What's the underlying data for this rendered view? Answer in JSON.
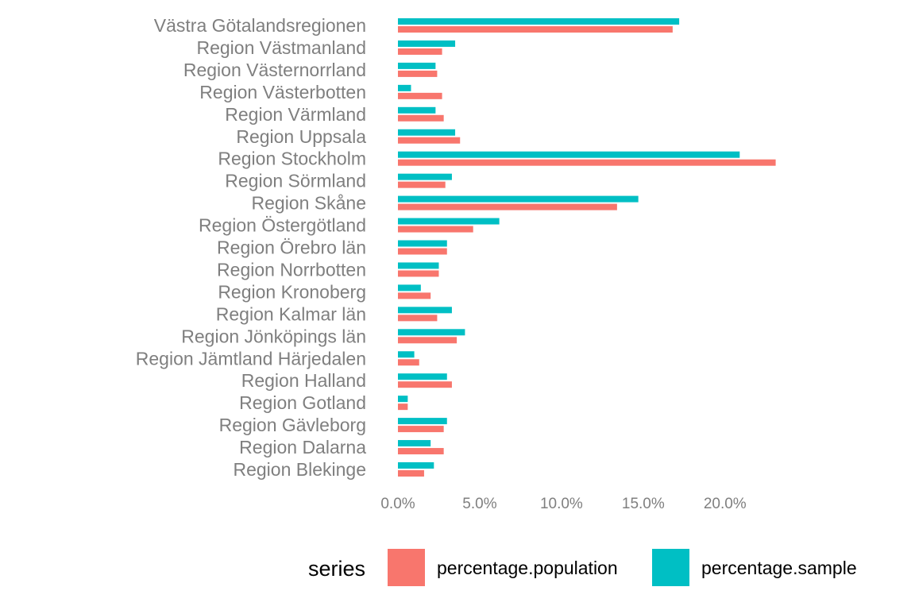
{
  "chart_data": {
    "type": "bar",
    "orientation": "horizontal",
    "categories": [
      "Västra Götalandsregionen",
      "Region Västmanland",
      "Region Västernorrland",
      "Region Västerbotten",
      "Region Värmland",
      "Region Uppsala",
      "Region Stockholm",
      "Region Sörmland",
      "Region Skåne",
      "Region Östergötland",
      "Region Örebro län",
      "Region Norrbotten",
      "Region Kronoberg",
      "Region Kalmar län",
      "Region Jönköpings län",
      "Region Jämtland Härjedalen",
      "Region Halland",
      "Region Gotland",
      "Region Gävleborg",
      "Region Dalarna",
      "Region Blekinge"
    ],
    "series": [
      {
        "name": "percentage.sample",
        "color": "#00BFC4",
        "values": [
          17.2,
          3.5,
          2.3,
          0.8,
          2.3,
          3.5,
          20.9,
          3.3,
          14.7,
          6.2,
          3.0,
          2.5,
          1.4,
          3.3,
          4.1,
          1.0,
          3.0,
          0.6,
          3.0,
          2.0,
          2.2
        ]
      },
      {
        "name": "percentage.population",
        "color": "#F8766D",
        "values": [
          16.8,
          2.7,
          2.4,
          2.7,
          2.8,
          3.8,
          23.1,
          2.9,
          13.4,
          4.6,
          3.0,
          2.5,
          2.0,
          2.4,
          3.6,
          1.3,
          3.3,
          0.6,
          2.8,
          2.8,
          1.6
        ]
      }
    ],
    "xlim": [
      0,
      23.8
    ],
    "x_ticks": [
      0,
      5,
      10,
      15,
      20
    ],
    "x_tick_labels": [
      "0.0%",
      "5.0%",
      "10.0%",
      "15.0%",
      "20.0%"
    ],
    "title": "",
    "xlabel": "",
    "ylabel": "",
    "grid": false,
    "legend": {
      "title": "series",
      "position": "bottom",
      "entries": [
        {
          "label": "percentage.population",
          "color": "#F8766D"
        },
        {
          "label": "percentage.sample",
          "color": "#00BFC4"
        }
      ]
    }
  }
}
